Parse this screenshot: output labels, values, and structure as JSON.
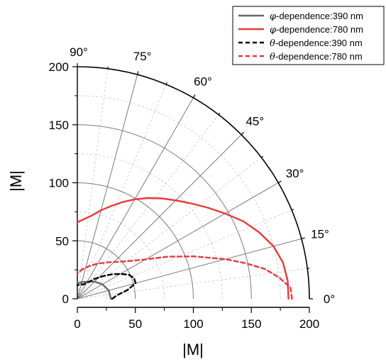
{
  "chart_data": {
    "type": "polar-line",
    "description_scope": "quarter polar plot, angles 0-90 degrees, radius |M|",
    "xlabel": "|M|",
    "ylabel": "|M|",
    "rlim": [
      0,
      200
    ],
    "r_ticks": [
      0,
      50,
      100,
      150,
      200
    ],
    "angle_ticks": [
      0,
      15,
      30,
      45,
      60,
      75,
      90
    ],
    "angle_tick_labels": [
      "0°",
      "15°",
      "30°",
      "45°",
      "60°",
      "75°",
      "90°"
    ],
    "x_tick_labels": [
      "0",
      "50",
      "100",
      "150",
      "200"
    ],
    "y_tick_labels": [
      "0",
      "50",
      "100",
      "150",
      "200"
    ],
    "grid": true,
    "legend_position": "top-right",
    "series": [
      {
        "name": "φ-dependence:390 nm",
        "symbol": "φ",
        "text": "-dependence:390 nm",
        "color": "#666666",
        "dash": "solid",
        "theta": [
          0,
          15,
          30,
          45,
          60,
          75,
          90
        ],
        "r": [
          29,
          28,
          25,
          21,
          17,
          15,
          13
        ]
      },
      {
        "name": "φ-dependence:780 nm",
        "symbol": "φ",
        "text": "-dependence:780 nm",
        "color": "#e8383b",
        "dash": "solid",
        "theta": [
          0,
          5,
          10,
          15,
          20,
          25,
          30,
          35,
          40,
          45,
          50,
          55,
          60,
          65,
          70,
          75,
          80,
          85,
          90
        ],
        "r": [
          182,
          182,
          180,
          175,
          167,
          158,
          147,
          137,
          128,
          120,
          113,
          106,
          99,
          92,
          85,
          79,
          73,
          69,
          66
        ]
      },
      {
        "name": "θ-dependence:390 nm",
        "symbol": "θ",
        "text": "-dependence:390 nm",
        "color": "#000000",
        "dash": "dashed",
        "theta": [
          0,
          5,
          10,
          15,
          20,
          25,
          30,
          35,
          40,
          45,
          50,
          55,
          60,
          65,
          70,
          75,
          80,
          85,
          90
        ],
        "r": [
          30,
          34,
          44,
          52,
          52,
          49,
          43,
          37,
          31,
          26,
          22,
          18,
          16,
          14,
          13,
          13,
          12,
          12,
          12
        ]
      },
      {
        "name": "θ-dependence:780 nm",
        "symbol": "θ",
        "text": "-dependence:780 nm",
        "color": "#e8383b",
        "dash": "dashed",
        "theta": [
          0,
          3,
          6,
          9,
          12,
          15,
          20,
          25,
          30,
          35,
          40,
          50,
          60,
          70,
          80,
          90
        ],
        "r": [
          185,
          184,
          175,
          164,
          148,
          132,
          107,
          86,
          68,
          57,
          50,
          41,
          35,
          30,
          26,
          22
        ]
      }
    ]
  }
}
